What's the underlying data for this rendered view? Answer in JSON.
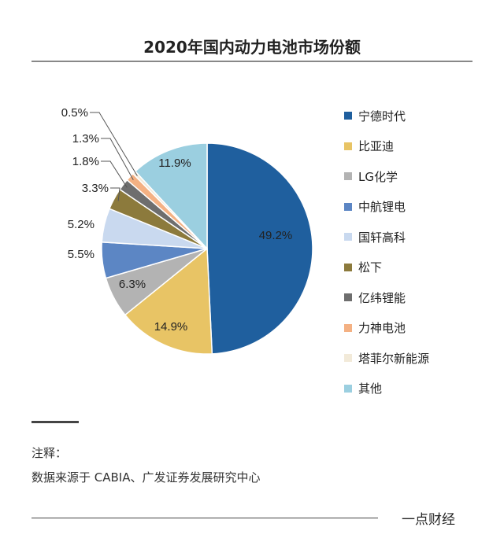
{
  "chart_data": {
    "type": "pie",
    "title": "2020年国内动力电池市场份额",
    "slices": [
      {
        "label": "宁德时代",
        "value": 49.2,
        "display": "49.2%",
        "color": "#1f5f9e"
      },
      {
        "label": "比亚迪",
        "value": 14.9,
        "display": "14.9%",
        "color": "#e8c465"
      },
      {
        "label": "LG化学",
        "value": 6.3,
        "display": "6.3%",
        "color": "#b3b3b3"
      },
      {
        "label": "中航锂电",
        "value": 5.5,
        "display": "5.5%",
        "color": "#5c86c4"
      },
      {
        "label": "国轩高科",
        "value": 5.2,
        "display": "5.2%",
        "color": "#c9d9ef"
      },
      {
        "label": "松下",
        "value": 3.3,
        "display": "3.3%",
        "color": "#8c7a3c"
      },
      {
        "label": "亿纬锂能",
        "value": 1.8,
        "display": "1.8%",
        "color": "#6e6e6e"
      },
      {
        "label": "力神电池",
        "value": 1.3,
        "display": "1.3%",
        "color": "#f4b183"
      },
      {
        "label": "塔菲尔新能源",
        "value": 0.5,
        "display": "0.5%",
        "color": "#f2ead9"
      },
      {
        "label": "其他",
        "value": 11.9,
        "display": "11.9%",
        "color": "#9bcfe0"
      }
    ],
    "legend_position": "right"
  },
  "note": {
    "label": "注释：",
    "text": "数据来源于 CABIA、广发证券发展研究中心"
  },
  "footer": {
    "brand": "一点财经"
  }
}
